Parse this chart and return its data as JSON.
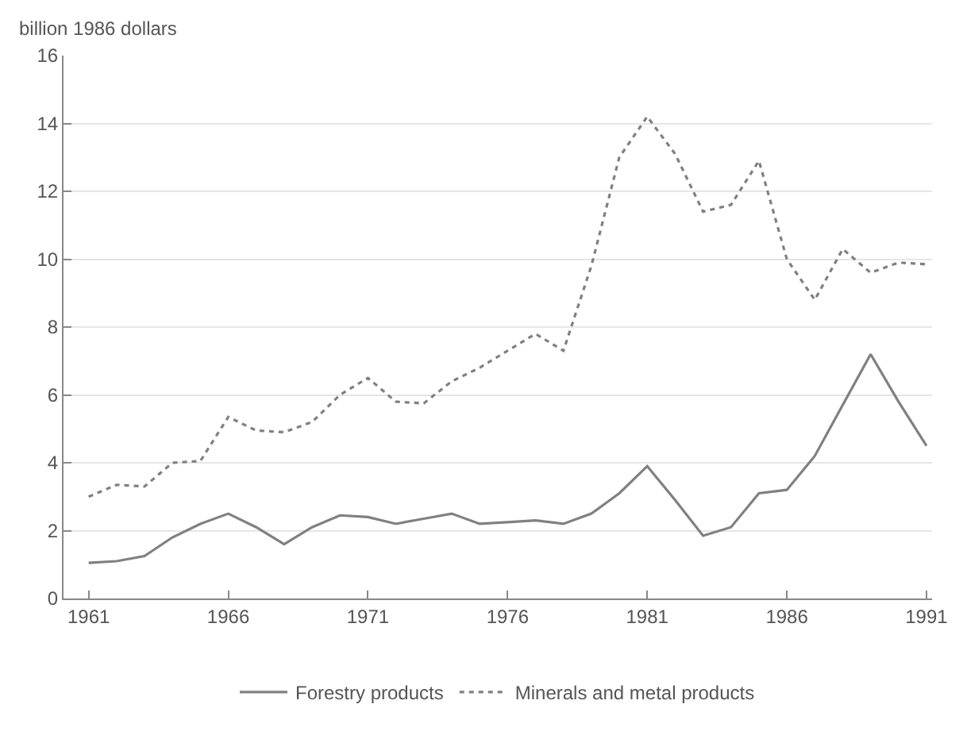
{
  "chart_data": {
    "type": "line",
    "ylabel": "billion 1986 dollars",
    "x": [
      1961,
      1962,
      1963,
      1964,
      1965,
      1966,
      1967,
      1968,
      1969,
      1970,
      1971,
      1972,
      1973,
      1974,
      1975,
      1976,
      1977,
      1978,
      1979,
      1980,
      1981,
      1982,
      1983,
      1984,
      1985,
      1986,
      1987,
      1988,
      1989,
      1990,
      1991
    ],
    "series": [
      {
        "name": "Forestry products",
        "color": "#808080",
        "line_style": "solid",
        "values": [
          1.05,
          1.1,
          1.25,
          1.8,
          2.2,
          2.5,
          2.1,
          1.6,
          2.1,
          2.45,
          2.4,
          2.2,
          2.35,
          2.5,
          2.2,
          2.25,
          2.3,
          2.2,
          2.5,
          3.1,
          3.9,
          2.9,
          1.85,
          2.1,
          3.1,
          3.2,
          4.2,
          5.7,
          7.2,
          5.8,
          4.5
        ]
      },
      {
        "name": "Minerals and metal products",
        "color": "#808080",
        "line_style": "dotted",
        "values": [
          3.0,
          3.35,
          3.3,
          4.0,
          4.05,
          5.35,
          4.95,
          4.9,
          5.2,
          6.0,
          6.5,
          5.8,
          5.75,
          6.4,
          6.8,
          7.3,
          7.8,
          7.3,
          9.8,
          13.0,
          14.2,
          13.1,
          11.4,
          11.6,
          12.9,
          10.0,
          8.8,
          10.3,
          9.6,
          9.9,
          9.85
        ]
      }
    ],
    "xlim": [
      1960.1,
      1991.2
    ],
    "xticks": [
      1961,
      1966,
      1971,
      1976,
      1981,
      1986,
      1991
    ],
    "ylim": [
      0,
      16
    ],
    "yticks": [
      0,
      2,
      4,
      6,
      8,
      10,
      12,
      14,
      16
    ],
    "grid": "y",
    "legend": "bottom",
    "marker": "none"
  }
}
